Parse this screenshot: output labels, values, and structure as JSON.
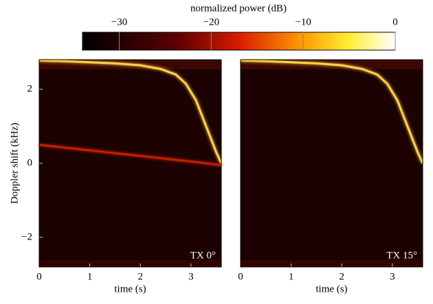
{
  "chart_data": [
    {
      "type": "colorbar",
      "label": "normalized power (dB)",
      "xlim": [
        -34,
        0
      ],
      "xticks": [
        {
          "value": -30,
          "label": "−30"
        },
        {
          "value": -20,
          "label": "−20"
        },
        {
          "value": -10,
          "label": "−10"
        },
        0
      ]
    },
    {
      "type": "line",
      "xlabel": "time (s)",
      "ylabel": "Doppler shift (kHz)",
      "annotation": "TX 0°",
      "xlim": [
        0,
        3.6
      ],
      "ylim": [
        -2.8,
        2.8
      ],
      "xticks": [
        0,
        1,
        2,
        3
      ],
      "yticks": [
        {
          "value": -2,
          "label": "−2"
        },
        0,
        2
      ],
      "series": [
        {
          "color": "#ffd24a",
          "x": [
            0,
            0.5,
            1,
            1.5,
            2,
            2.4,
            2.7,
            2.9,
            3.1,
            3.3,
            3.5,
            3.6
          ],
          "values": [
            2.78,
            2.76,
            2.73,
            2.7,
            2.65,
            2.55,
            2.4,
            2.15,
            1.7,
            1.0,
            0.3,
            0.0
          ]
        },
        {
          "color": "#c81e00",
          "x": [
            0,
            1,
            2,
            3,
            3.6
          ],
          "values": [
            0.5,
            0.35,
            0.2,
            0.05,
            -0.05
          ]
        }
      ]
    },
    {
      "type": "line",
      "xlabel": "time (s)",
      "annotation": "TX 15°",
      "xlim": [
        0,
        3.6
      ],
      "ylim": [
        -2.8,
        2.8
      ],
      "xticks": [
        0,
        1,
        2,
        3
      ],
      "series": [
        {
          "color": "#ffd24a",
          "x": [
            0,
            0.5,
            1,
            1.5,
            2,
            2.4,
            2.7,
            2.9,
            3.1,
            3.3,
            3.5,
            3.6
          ],
          "values": [
            2.78,
            2.76,
            2.73,
            2.7,
            2.65,
            2.55,
            2.4,
            2.15,
            1.7,
            1.0,
            0.3,
            0.0
          ]
        }
      ]
    }
  ]
}
